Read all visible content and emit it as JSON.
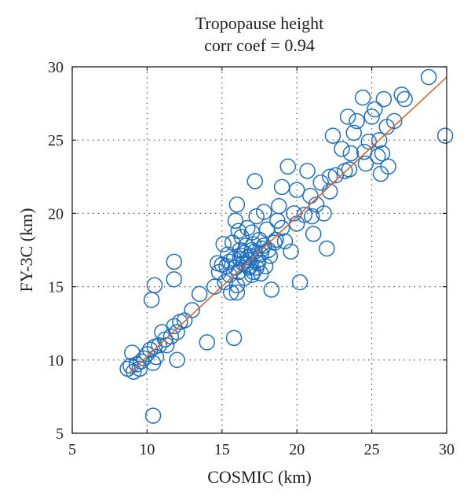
{
  "chart_data": {
    "type": "scatter",
    "title": "Tropopause height",
    "subtitle": "corr coef = 0.94",
    "xlabel": "COSMIC (km)",
    "ylabel": "FY-3C (km)",
    "xlim": [
      5,
      30
    ],
    "ylim": [
      5,
      30
    ],
    "xticks": [
      5,
      10,
      15,
      20,
      25,
      30
    ],
    "yticks": [
      5,
      10,
      15,
      20,
      25,
      30
    ],
    "grid": true,
    "colors": {
      "points": "#1f6fbf",
      "fit_line": "#d9652b",
      "axes": "#231f20",
      "grid": "#555555"
    },
    "fit_line": {
      "x": [
        8.8,
        30
      ],
      "y": [
        9.1,
        29.3
      ]
    },
    "points": [
      [
        8.7,
        9.4
      ],
      [
        8.9,
        9.6
      ],
      [
        9.0,
        10.5
      ],
      [
        9.1,
        9.2
      ],
      [
        9.3,
        9.7
      ],
      [
        9.5,
        9.4
      ],
      [
        9.6,
        9.9
      ],
      [
        9.8,
        10.1
      ],
      [
        10.0,
        10.4
      ],
      [
        10.2,
        10.7
      ],
      [
        10.4,
        9.8
      ],
      [
        10.5,
        10.9
      ],
      [
        10.6,
        10.2
      ],
      [
        10.8,
        11.0
      ],
      [
        11.0,
        11.9
      ],
      [
        11.2,
        11.4
      ],
      [
        11.3,
        11.0
      ],
      [
        11.6,
        11.6
      ],
      [
        11.8,
        12.3
      ],
      [
        12.0,
        11.9
      ],
      [
        12.2,
        12.6
      ],
      [
        12.5,
        12.7
      ],
      [
        10.3,
        14.1
      ],
      [
        10.5,
        15.1
      ],
      [
        11.8,
        15.5
      ],
      [
        11.8,
        16.7
      ],
      [
        12.0,
        10.0
      ],
      [
        10.4,
        6.2
      ],
      [
        13.0,
        13.4
      ],
      [
        13.5,
        14.5
      ],
      [
        14.0,
        11.2
      ],
      [
        14.5,
        15.0
      ],
      [
        14.8,
        16.0
      ],
      [
        15.0,
        16.5
      ],
      [
        15.2,
        15.3
      ],
      [
        15.4,
        17.2
      ],
      [
        15.5,
        15.8
      ],
      [
        15.6,
        14.6
      ],
      [
        15.7,
        18.0
      ],
      [
        15.8,
        16.9
      ],
      [
        15.9,
        19.5
      ],
      [
        16.0,
        20.6
      ],
      [
        16.0,
        15.1
      ],
      [
        16.1,
        16.0
      ],
      [
        16.2,
        17.5
      ],
      [
        16.3,
        18.4
      ],
      [
        16.4,
        16.6
      ],
      [
        16.5,
        15.6
      ],
      [
        16.6,
        17.8
      ],
      [
        16.7,
        19.0
      ],
      [
        16.8,
        16.3
      ],
      [
        16.9,
        17.1
      ],
      [
        17.0,
        18.7
      ],
      [
        17.1,
        16.0
      ],
      [
        17.2,
        22.2
      ],
      [
        17.2,
        17.4
      ],
      [
        17.3,
        19.8
      ],
      [
        17.4,
        16.8
      ],
      [
        17.5,
        18.2
      ],
      [
        17.6,
        15.9
      ],
      [
        17.7,
        17.6
      ],
      [
        17.8,
        20.1
      ],
      [
        17.9,
        16.4
      ],
      [
        18.0,
        18.9
      ],
      [
        18.2,
        17.1
      ],
      [
        18.3,
        14.8
      ],
      [
        18.5,
        18.0
      ],
      [
        18.7,
        19.5
      ],
      [
        18.8,
        20.5
      ],
      [
        19.0,
        21.8
      ],
      [
        19.2,
        18.1
      ],
      [
        19.4,
        23.2
      ],
      [
        19.6,
        17.4
      ],
      [
        19.8,
        20.0
      ],
      [
        20.0,
        21.6
      ],
      [
        20.2,
        15.3
      ],
      [
        20.5,
        19.9
      ],
      [
        20.7,
        22.9
      ],
      [
        20.9,
        21.2
      ],
      [
        21.1,
        18.6
      ],
      [
        21.3,
        20.6
      ],
      [
        21.6,
        22.1
      ],
      [
        21.8,
        20.0
      ],
      [
        22.0,
        17.6
      ],
      [
        22.2,
        22.5
      ],
      [
        22.4,
        25.3
      ],
      [
        22.6,
        22.6
      ],
      [
        23.0,
        24.4
      ],
      [
        23.2,
        22.9
      ],
      [
        23.4,
        26.6
      ],
      [
        23.6,
        24.1
      ],
      [
        23.8,
        25.5
      ],
      [
        24.0,
        26.3
      ],
      [
        24.4,
        27.9
      ],
      [
        24.6,
        23.4
      ],
      [
        24.8,
        24.9
      ],
      [
        25.0,
        26.6
      ],
      [
        25.2,
        27.1
      ],
      [
        25.4,
        23.9
      ],
      [
        25.6,
        22.7
      ],
      [
        25.8,
        27.8
      ],
      [
        26.0,
        25.9
      ],
      [
        26.5,
        26.3
      ],
      [
        27.0,
        28.1
      ],
      [
        27.2,
        27.8
      ],
      [
        28.8,
        29.3
      ],
      [
        29.9,
        25.3
      ],
      [
        15.1,
        17.9
      ],
      [
        15.3,
        16.4
      ],
      [
        15.9,
        16.3
      ],
      [
        16.2,
        16.9
      ],
      [
        16.5,
        17.3
      ],
      [
        16.7,
        17.0
      ],
      [
        16.9,
        16.4
      ],
      [
        17.1,
        17.9
      ],
      [
        17.3,
        16.3
      ],
      [
        17.6,
        17.2
      ],
      [
        17.8,
        17.8
      ],
      [
        18.1,
        17.5
      ],
      [
        14.7,
        16.6
      ],
      [
        15.5,
        16.7
      ],
      [
        16.1,
        18.8
      ],
      [
        16.8,
        16.8
      ],
      [
        17.0,
        17.5
      ],
      [
        17.4,
        16.6
      ],
      [
        16.3,
        17.1
      ],
      [
        16.6,
        16.5
      ],
      [
        15.8,
        11.5
      ],
      [
        16.0,
        14.6
      ],
      [
        17.0,
        15.8
      ],
      [
        18.6,
        18.2
      ],
      [
        19.0,
        19.0
      ],
      [
        20.0,
        19.3
      ],
      [
        21.0,
        19.8
      ],
      [
        22.2,
        21.5
      ],
      [
        23.5,
        23.0
      ],
      [
        24.5,
        24.2
      ],
      [
        25.5,
        25.0
      ],
      [
        25.7,
        24.1
      ],
      [
        26.1,
        23.2
      ]
    ]
  }
}
